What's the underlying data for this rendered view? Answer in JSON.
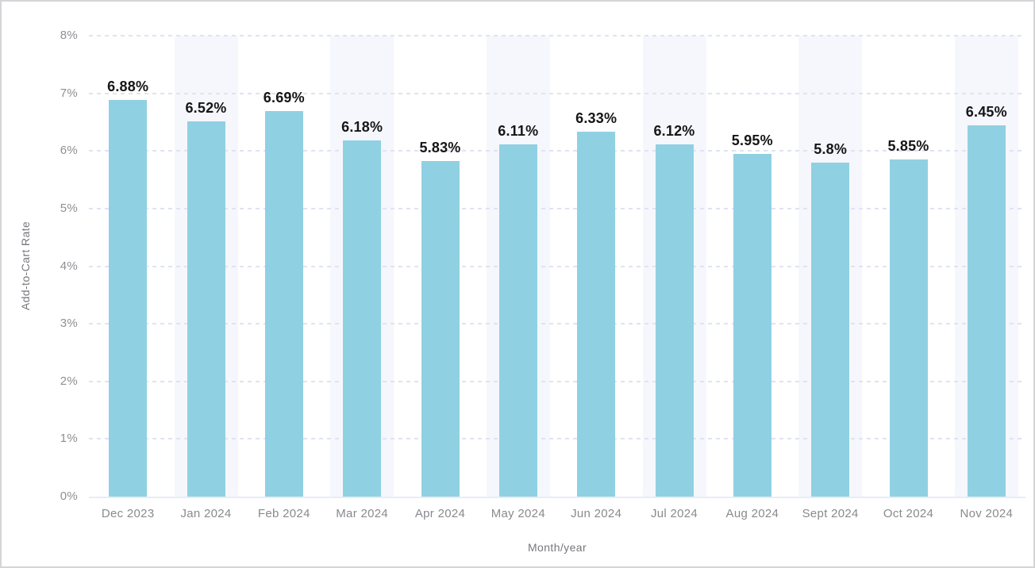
{
  "chart_data": {
    "type": "bar",
    "title": "",
    "xlabel": "Month/year",
    "ylabel": "Add-to-Cart Rate",
    "categories": [
      "Dec 2023",
      "Jan 2024",
      "Feb 2024",
      "Mar 2024",
      "Apr 2024",
      "May 2024",
      "Jun 2024",
      "Jul 2024",
      "Aug 2024",
      "Sept 2024",
      "Oct 2024",
      "Nov 2024"
    ],
    "values": [
      6.88,
      6.52,
      6.69,
      6.18,
      5.83,
      6.11,
      6.33,
      6.12,
      5.95,
      5.8,
      5.85,
      6.45
    ],
    "data_labels": [
      "6.88%",
      "6.52%",
      "6.69%",
      "6.18%",
      "5.83%",
      "6.11%",
      "6.33%",
      "6.12%",
      "5.95%",
      "5.8%",
      "5.85%",
      "6.45%"
    ],
    "ylim": [
      0,
      8
    ],
    "y_tick_labels": [
      "0%",
      "1%",
      "2%",
      "3%",
      "4%",
      "5%",
      "6%",
      "7%",
      "8%"
    ],
    "grid": "horizontal-dashed",
    "legend": "none",
    "column_shading": "alternating odd columns shaded",
    "colors": {
      "bar": "#8fd1e2",
      "band": "#f5f7fc",
      "gridline": "#dfe3f2",
      "baseline": "#e9ecf5",
      "tick_text": "#8f8f94",
      "data_label_text": "#161616",
      "axis_title_text": "#76777c",
      "frame_border": "#d7d4d9",
      "background": "#ffffff"
    }
  }
}
